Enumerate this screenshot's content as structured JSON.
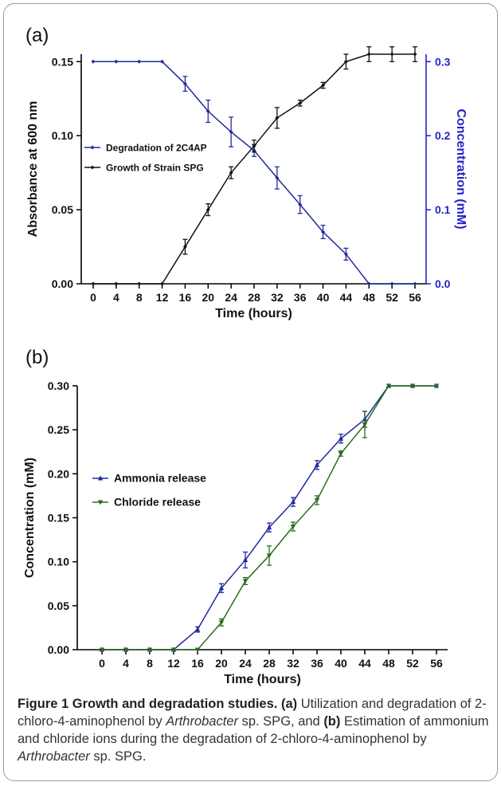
{
  "chart_data": [
    {
      "panel_label": "(a)",
      "type": "line",
      "x": [
        0,
        4,
        8,
        12,
        16,
        20,
        24,
        28,
        32,
        36,
        40,
        44,
        48,
        52,
        56
      ],
      "xticks": [
        0,
        4,
        8,
        12,
        16,
        20,
        24,
        28,
        32,
        36,
        40,
        44,
        48,
        52,
        56
      ],
      "xlabel": "Time (hours)",
      "ylabel": "Absorbance at 600 nm",
      "ylim": [
        0,
        0.155
      ],
      "yticks": [
        "0.00",
        "0.05",
        "0.10",
        "0.15"
      ],
      "y2label": "Concentration (mM)",
      "y2lim": [
        0,
        0.31
      ],
      "y2ticks": [
        "0.0",
        "0.1",
        "0.2",
        "0.3"
      ],
      "legend_position": "left",
      "series": [
        {
          "name": "Degradation of 2C4AP",
          "axis": "right",
          "color": "#1f2a9c",
          "marker": "diamond",
          "values": [
            0.3,
            0.3,
            0.3,
            0.3,
            0.27,
            0.233,
            0.205,
            0.18,
            0.143,
            0.107,
            0.07,
            0.04,
            0.0,
            0.0,
            0.0
          ],
          "errors": [
            0,
            0,
            0,
            0,
            0.01,
            0.015,
            0.02,
            0.008,
            0.015,
            0.012,
            0.009,
            0.008,
            0,
            0,
            0
          ]
        },
        {
          "name": "Growth of Strain SPG",
          "axis": "left",
          "color": "#111111",
          "marker": "diamond",
          "values": [
            0.0,
            0.0,
            0.0,
            0.0,
            0.025,
            0.05,
            0.075,
            0.093,
            0.112,
            0.122,
            0.134,
            0.15,
            0.155,
            0.155,
            0.155
          ],
          "errors": [
            0,
            0,
            0,
            0,
            0.005,
            0.004,
            0.004,
            0.004,
            0.007,
            0.002,
            0.002,
            0.005,
            0.005,
            0.005,
            0.005
          ]
        }
      ]
    },
    {
      "panel_label": "(b)",
      "type": "line",
      "x": [
        0,
        4,
        8,
        12,
        16,
        20,
        24,
        28,
        32,
        36,
        40,
        44,
        48,
        52,
        56
      ],
      "xticks": [
        0,
        4,
        8,
        12,
        16,
        20,
        24,
        28,
        32,
        36,
        40,
        44,
        48,
        52,
        56
      ],
      "xlabel": "Time (hours)",
      "ylabel": "Concentration (mM)",
      "ylim": [
        0,
        0.3
      ],
      "yticks": [
        "0.00",
        "0.05",
        "0.10",
        "0.15",
        "0.20",
        "0.25",
        "0.30"
      ],
      "legend_position": "left",
      "series": [
        {
          "name": "Ammonia release",
          "color": "#1f2a9c",
          "marker": "triangle-up",
          "values": [
            0.0,
            0.0,
            0.0,
            0.0,
            0.023,
            0.07,
            0.102,
            0.139,
            0.168,
            0.21,
            0.24,
            0.262,
            0.3,
            0.3,
            0.3
          ],
          "errors": [
            0,
            0,
            0,
            0,
            0.003,
            0.005,
            0.009,
            0.005,
            0.005,
            0.005,
            0.005,
            0.009,
            0,
            0,
            0
          ]
        },
        {
          "name": "Chloride release",
          "color": "#2e6b1e",
          "marker": "triangle-down",
          "values": [
            0.0,
            0.0,
            0.0,
            0.0,
            0.0,
            0.031,
            0.078,
            0.107,
            0.14,
            0.17,
            0.223,
            0.256,
            0.3,
            0.3,
            0.3
          ],
          "errors": [
            0,
            0,
            0,
            0,
            0,
            0.004,
            0.004,
            0.011,
            0.005,
            0.005,
            0.003,
            0.015,
            0,
            0,
            0
          ]
        }
      ]
    }
  ],
  "caption": {
    "title": "Figure 1 Growth and degradation studies.",
    "label_a": "(a)",
    "text_a_1": " Utilization and degradation of 2-chloro-4-aminophenol by ",
    "organism_1": "Arthrobacter",
    "text_a_2": " sp. SPG, and ",
    "label_b": "(b)",
    "text_b_1": " Estimation of ammonium and chloride ions during the degradation of 2-chloro-4-aminophenol by ",
    "organism_2": "Arthrobacter",
    "text_b_2": " sp. SPG."
  }
}
